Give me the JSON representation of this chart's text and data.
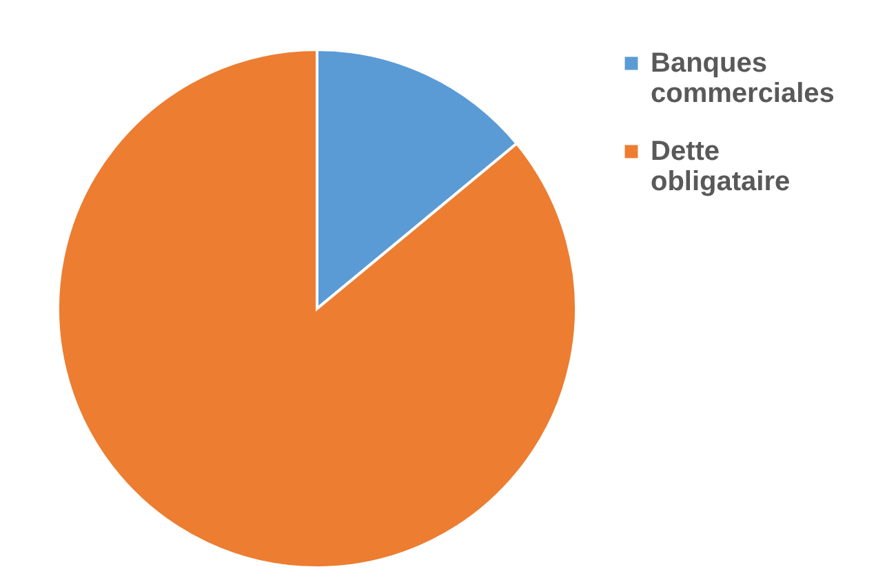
{
  "chart_data": {
    "type": "pie",
    "categories": [
      "Banques commerciales",
      "Dette obligataire"
    ],
    "values": [
      14,
      86
    ],
    "colors": [
      "#5b9bd5",
      "#ed7d31"
    ],
    "legend": "right"
  }
}
